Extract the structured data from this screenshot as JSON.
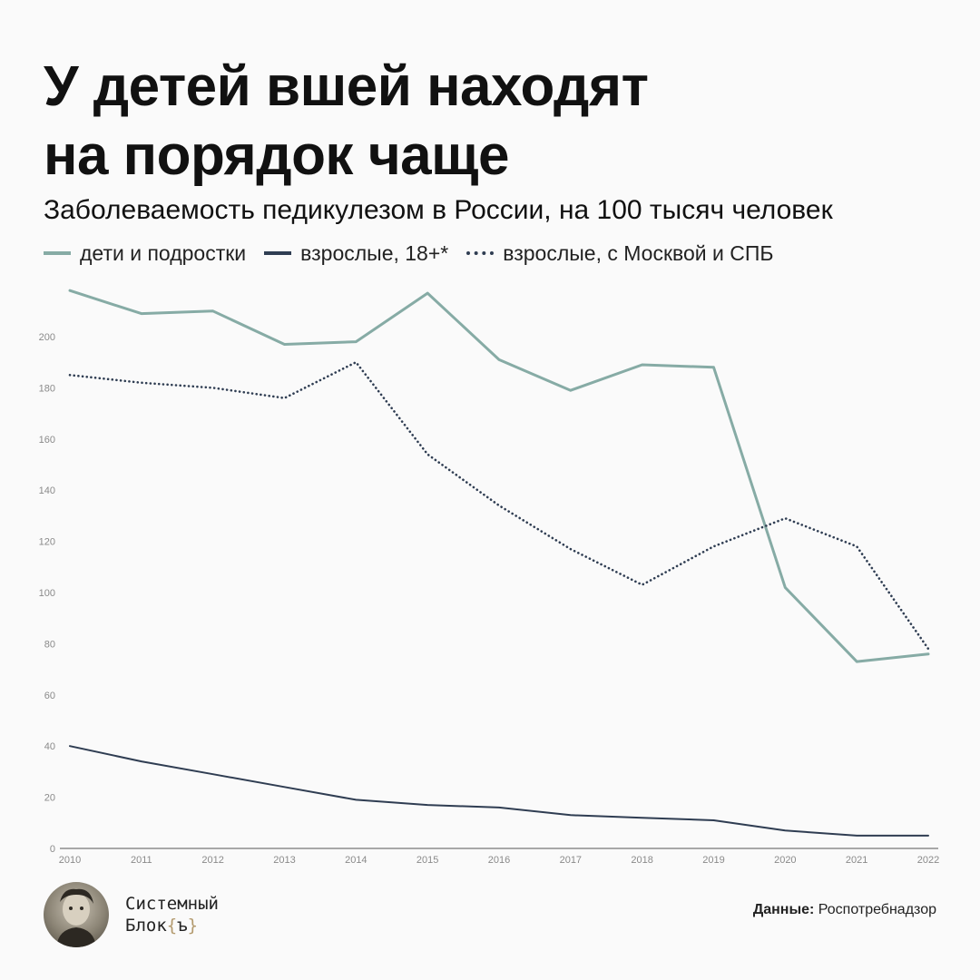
{
  "title_line1": "У детей вшей находят",
  "title_line2": "на порядок чаще",
  "subtitle": "Заболеваемость педикулезом в России, на 100 тысяч человек",
  "legend": [
    {
      "label": "дети и подростки",
      "color": "#86aba5",
      "style": "solid"
    },
    {
      "label": "взрослые, 18+*",
      "color": "#2f3d52",
      "style": "solid"
    },
    {
      "label": "взрослые, с Москвой и СПБ",
      "color": "#2f3d52",
      "style": "dotted"
    }
  ],
  "brand": {
    "line1": "Системный",
    "line2_text": "Блок",
    "line2_open": "{",
    "line2_mid": "ъ",
    "line2_close": "}"
  },
  "source": {
    "label": "Данные:",
    "value": "Роспотребнадзор"
  },
  "chart_data": {
    "type": "line",
    "x": [
      2010,
      2011,
      2012,
      2013,
      2014,
      2015,
      2016,
      2017,
      2018,
      2019,
      2020,
      2021,
      2022
    ],
    "series": [
      {
        "name": "дети и подростки",
        "color": "#86aba5",
        "style": "solid",
        "values": [
          218,
          209,
          210,
          197,
          198,
          217,
          191,
          179,
          189,
          188,
          102,
          73,
          76
        ]
      },
      {
        "name": "взрослые, 18+*",
        "color": "#2f3d52",
        "style": "solid",
        "values": [
          40,
          34,
          29,
          24,
          19,
          17,
          16,
          13,
          12,
          11,
          7,
          5,
          5
        ]
      },
      {
        "name": "взрослые, с Москвой и СПБ",
        "color": "#2f3d52",
        "style": "dotted",
        "values": [
          185,
          182,
          180,
          176,
          190,
          154,
          134,
          117,
          103,
          118,
          129,
          118,
          78
        ]
      }
    ],
    "yticks": [
      0,
      20,
      40,
      60,
      80,
      100,
      120,
      140,
      160,
      180,
      200
    ],
    "ylim": [
      0,
      220
    ],
    "grid": false
  }
}
